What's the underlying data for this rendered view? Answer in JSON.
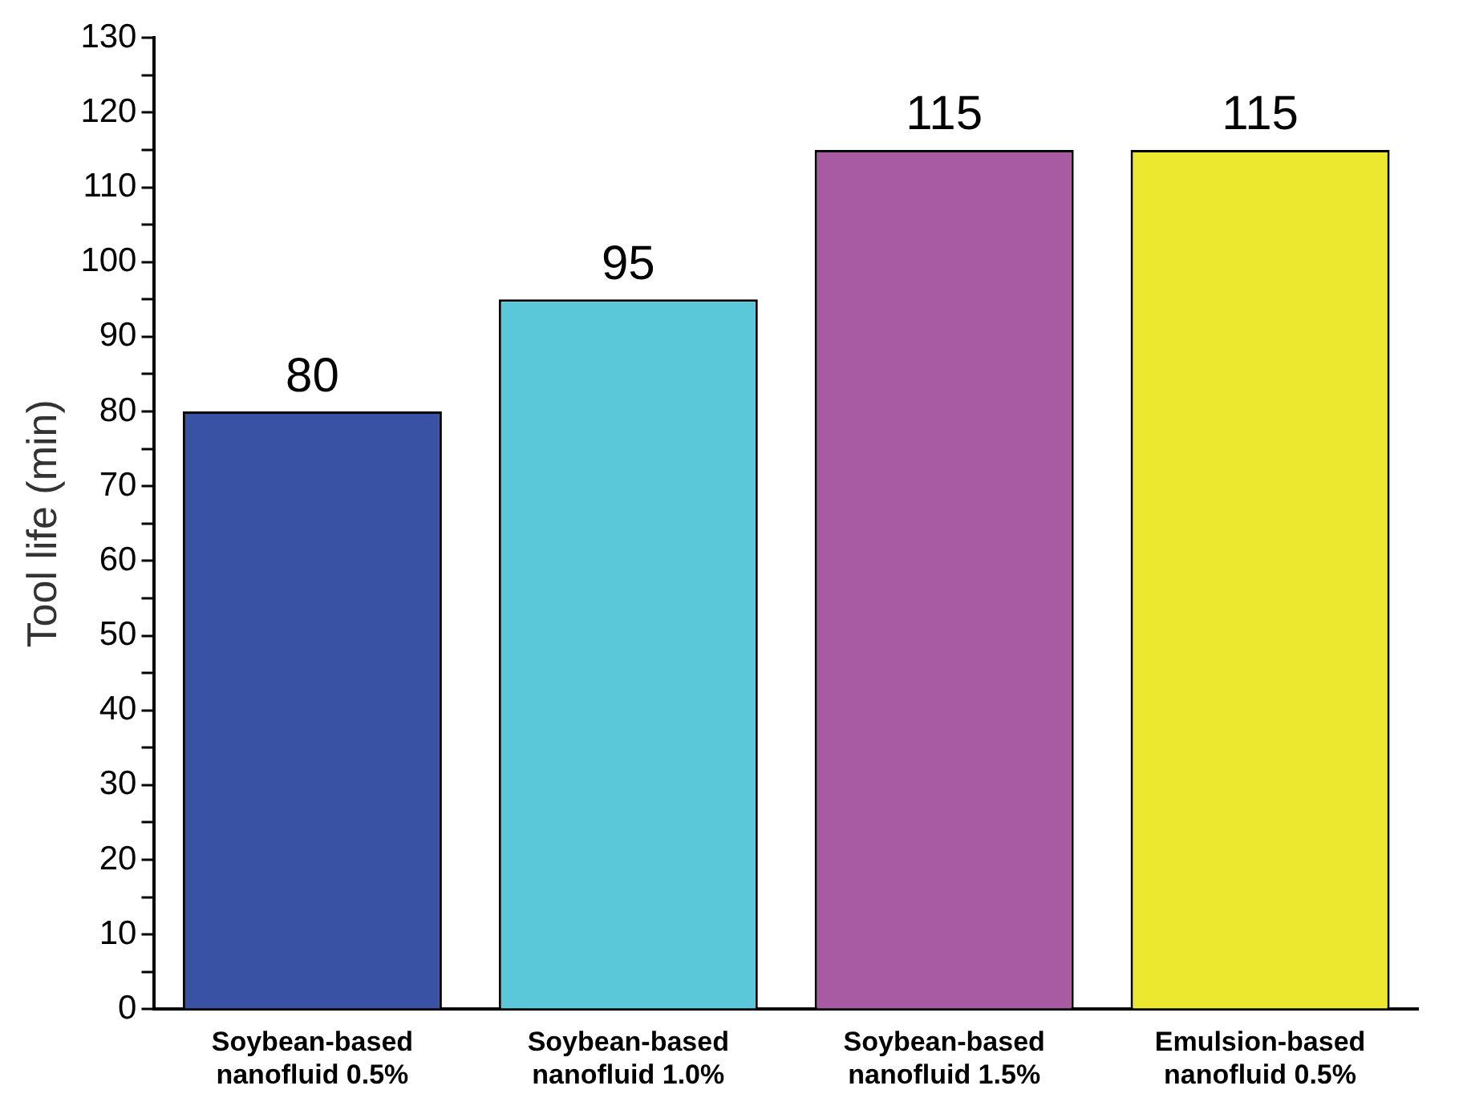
{
  "chart_data": {
    "type": "bar",
    "ylabel": "Tool life (min)",
    "categories": [
      "Soybean-based nanofluid 0.5%",
      "Soybean-based nanofluid 1.0%",
      "Soybean-based nanofluid 1.5%",
      "Emulsion-based nanofluid 0.5%"
    ],
    "values": [
      80,
      95,
      115,
      115
    ],
    "colors": [
      "#3a52a3",
      "#5bc8da",
      "#a85aa2",
      "#ece830"
    ],
    "ylim": [
      0,
      130
    ],
    "yticks": [
      0,
      {
        "value": 5,
        "label": null
      },
      10,
      {
        "value": 15,
        "label": null
      },
      20,
      {
        "value": 25,
        "label": null
      },
      30,
      {
        "value": 35,
        "label": null
      },
      40,
      {
        "value": 45,
        "label": null
      },
      50,
      {
        "value": 55,
        "label": null
      },
      60,
      {
        "value": 65,
        "label": null
      },
      70,
      {
        "value": 75,
        "label": null
      },
      80,
      {
        "value": 85,
        "label": null
      },
      90,
      {
        "value": 95,
        "label": null
      },
      100,
      {
        "value": 105,
        "label": null
      },
      110,
      {
        "value": 115,
        "label": null
      },
      120,
      {
        "value": 125,
        "label": null
      },
      130
    ],
    "data_labels": true,
    "grid": false,
    "legend": false
  }
}
